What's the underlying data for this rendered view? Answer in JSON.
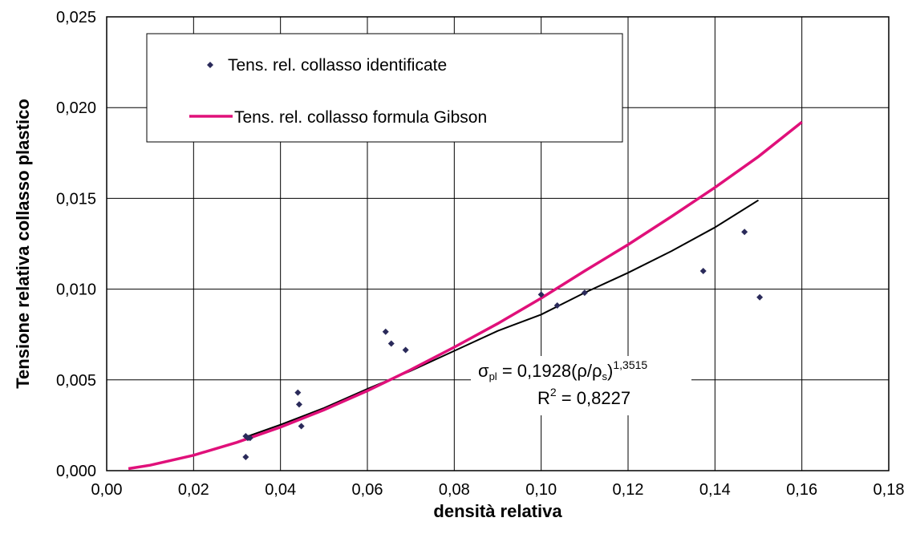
{
  "chart_data": {
    "type": "scatter",
    "xlabel": "densità relativa",
    "ylabel": "Tensione relativa collasso plastico",
    "xlim": [
      0,
      0.18
    ],
    "ylim": [
      0,
      0.025
    ],
    "x_ticks": [
      "0,00",
      "0,02",
      "0,04",
      "0,06",
      "0,08",
      "0,10",
      "0,12",
      "0,14",
      "0,16",
      "0,18"
    ],
    "y_ticks": [
      "0,000",
      "0,005",
      "0,010",
      "0,015",
      "0,020",
      "0,025"
    ],
    "grid": true,
    "legend_placement": "top-left",
    "series": [
      {
        "name": "Tens. rel. collasso identificate",
        "kind": "scatter",
        "color": "#2a2a5a",
        "points": [
          [
            0.032,
            0.0019
          ],
          [
            0.0325,
            0.0018
          ],
          [
            0.033,
            0.0018
          ],
          [
            0.032,
            0.00075
          ],
          [
            0.044,
            0.0043
          ],
          [
            0.0443,
            0.00365
          ],
          [
            0.0448,
            0.00245
          ],
          [
            0.0642,
            0.00765
          ],
          [
            0.0655,
            0.007
          ],
          [
            0.0688,
            0.00665
          ],
          [
            0.1,
            0.0097
          ],
          [
            0.1037,
            0.0091
          ],
          [
            0.11,
            0.0098
          ],
          [
            0.1373,
            0.011
          ],
          [
            0.1468,
            0.01315
          ],
          [
            0.1503,
            0.00955
          ]
        ]
      },
      {
        "name": "Tens. rel. collasso formula Gibson",
        "kind": "line",
        "color": "#e0107a",
        "points": [
          [
            0.005,
            0.00011
          ],
          [
            0.01,
            0.0003
          ],
          [
            0.02,
            0.00085
          ],
          [
            0.03,
            0.00156
          ],
          [
            0.04,
            0.0024
          ],
          [
            0.05,
            0.00335
          ],
          [
            0.06,
            0.0044
          ],
          [
            0.07,
            0.00556
          ],
          [
            0.08,
            0.0068
          ],
          [
            0.09,
            0.0081
          ],
          [
            0.1,
            0.0095
          ],
          [
            0.11,
            0.011
          ],
          [
            0.12,
            0.01245
          ],
          [
            0.13,
            0.014
          ],
          [
            0.14,
            0.0156
          ],
          [
            0.15,
            0.0173
          ],
          [
            0.16,
            0.0192
          ]
        ]
      },
      {
        "kind": "trendline",
        "color": "#000000",
        "points": [
          [
            0.032,
            0.00185
          ],
          [
            0.04,
            0.00253
          ],
          [
            0.05,
            0.00345
          ],
          [
            0.06,
            0.0045
          ],
          [
            0.07,
            0.0055
          ],
          [
            0.08,
            0.0066
          ],
          [
            0.09,
            0.0077
          ],
          [
            0.1,
            0.0086
          ],
          [
            0.11,
            0.0098
          ],
          [
            0.12,
            0.0109
          ],
          [
            0.13,
            0.0121
          ],
          [
            0.14,
            0.0134
          ],
          [
            0.15,
            0.0149
          ]
        ]
      }
    ],
    "annotation": {
      "equation_parts": [
        "σ",
        "pl",
        " = 0,1928(ρ/ρ",
        "s",
        ")",
        "1,3515"
      ],
      "r2_parts": [
        "R",
        "2",
        " = 0,8227"
      ]
    }
  }
}
